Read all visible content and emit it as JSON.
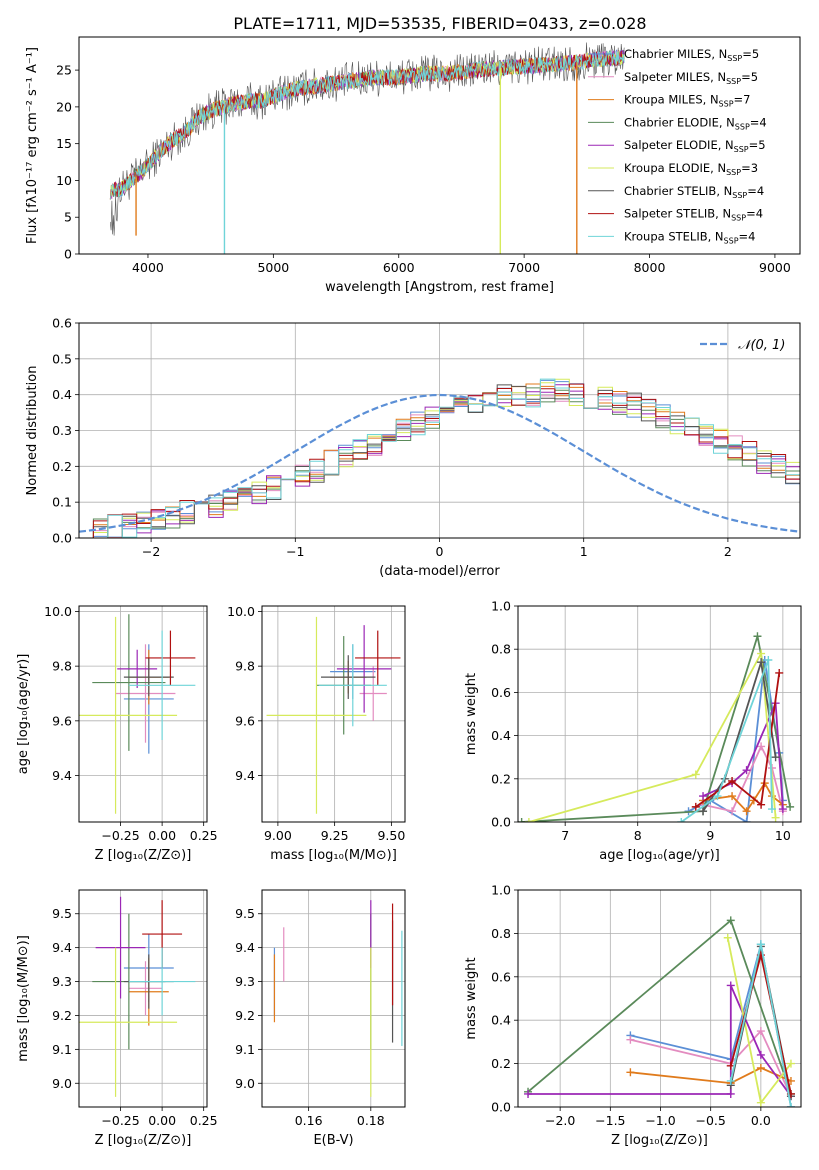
{
  "title": "PLATE=1711, MJD=53535, FIBERID=0433, z=0.028",
  "colors": {
    "chabrier_miles": "#5b8fd6",
    "salpeter_miles": "#e38cc0",
    "kroupa_miles": "#e07b1c",
    "chabrier_elodie": "#5a8a5a",
    "salpeter_elodie": "#9b27b5",
    "kroupa_elodie": "#d6ea5c",
    "chabrier_stelib": "#555555",
    "salpeter_stelib": "#b01010",
    "kroupa_stelib": "#6fd4d8",
    "normal_curve": "#5b8fd6",
    "grid": "#b0b0b0"
  },
  "chart_data": [
    {
      "id": "spectrum",
      "type": "line",
      "xlabel": "wavelength [Angstrom, rest frame]",
      "ylabel": "Flux [fλ10⁻¹⁷ erg cm⁻² s⁻¹ A⁻¹]",
      "xlim": [
        3450,
        9200
      ],
      "ylim": [
        0,
        29.5
      ],
      "xticks": [
        4000,
        5000,
        6000,
        7000,
        8000,
        9000
      ],
      "yticks": [
        0,
        5,
        10,
        15,
        20,
        25
      ],
      "grid": false,
      "legend_position": "top-right",
      "legend": [
        {
          "text": "Chabrier MILES, N",
          "sub": "SSP",
          "tail": "=5",
          "color": "chabrier_miles"
        },
        {
          "text": "Salpeter MILES, N",
          "sub": "SSP",
          "tail": "=5",
          "color": "salpeter_miles"
        },
        {
          "text": "Kroupa MILES, N",
          "sub": "SSP",
          "tail": "=7",
          "color": "kroupa_miles"
        },
        {
          "text": "Chabrier ELODIE, N",
          "sub": "SSP",
          "tail": "=4",
          "color": "chabrier_elodie"
        },
        {
          "text": "Salpeter ELODIE, N",
          "sub": "SSP",
          "tail": "=5",
          "color": "salpeter_elodie"
        },
        {
          "text": "Kroupa ELODIE, N",
          "sub": "SSP",
          "tail": "=3",
          "color": "kroupa_elodie"
        },
        {
          "text": "Chabrier STELIB, N",
          "sub": "SSP",
          "tail": "=4",
          "color": "chabrier_stelib"
        },
        {
          "text": "Salpeter STELIB, N",
          "sub": "SSP",
          "tail": "=4",
          "color": "salpeter_stelib"
        },
        {
          "text": "Kroupa STELIB, N",
          "sub": "SSP",
          "tail": "=4",
          "color": "kroupa_stelib"
        }
      ],
      "continuum": [
        [
          3700,
          8.5
        ],
        [
          3800,
          9
        ],
        [
          3900,
          10.5
        ],
        [
          4000,
          12
        ],
        [
          4100,
          14
        ],
        [
          4200,
          15.5
        ],
        [
          4300,
          16.5
        ],
        [
          4400,
          18.5
        ],
        [
          4500,
          19.5
        ],
        [
          4600,
          20
        ],
        [
          4700,
          20.5
        ],
        [
          4800,
          20.8
        ],
        [
          4900,
          20.8
        ],
        [
          5000,
          21.5
        ],
        [
          5200,
          22.5
        ],
        [
          5400,
          23
        ],
        [
          5600,
          23.5
        ],
        [
          5800,
          24
        ],
        [
          6000,
          24
        ],
        [
          6200,
          24.5
        ],
        [
          6400,
          24.5
        ],
        [
          6600,
          25
        ],
        [
          6800,
          25.3
        ],
        [
          7000,
          25.5
        ],
        [
          7200,
          25.8
        ],
        [
          7400,
          26
        ],
        [
          7600,
          26.5
        ],
        [
          7800,
          26.7
        ]
      ],
      "drops": [
        {
          "x": 4610,
          "to": 0,
          "series": "kroupa_stelib"
        },
        {
          "x": 6810,
          "to": 0,
          "series": "kroupa_elodie"
        },
        {
          "x": 7420,
          "to": 0,
          "series": "kroupa_miles"
        },
        {
          "x": 3905,
          "to": 2.5,
          "series": "kroupa_miles"
        }
      ]
    },
    {
      "id": "residuals",
      "type": "line",
      "xlabel": "(data-model)/error",
      "ylabel": "Normed distribution",
      "xlim": [
        -2.5,
        2.5
      ],
      "ylim": [
        0,
        0.6
      ],
      "xticks": [
        -2,
        -1,
        0,
        1,
        2
      ],
      "yticks": [
        0.0,
        0.1,
        0.2,
        0.3,
        0.4,
        0.5,
        0.6
      ],
      "grid": true,
      "legend_position": "top-right",
      "legend_label": "𝒩(0, 1)",
      "hist_bin_width": 0.1,
      "hist_x_start": -2.5,
      "hist_base": [
        0.02,
        0.025,
        0.03,
        0.035,
        0.04,
        0.05,
        0.06,
        0.07,
        0.08,
        0.09,
        0.1,
        0.11,
        0.125,
        0.14,
        0.16,
        0.17,
        0.19,
        0.21,
        0.23,
        0.24,
        0.26,
        0.28,
        0.3,
        0.32,
        0.34,
        0.355,
        0.37,
        0.38,
        0.39,
        0.395,
        0.4,
        0.4,
        0.41,
        0.41,
        0.4,
        0.395,
        0.39,
        0.38,
        0.37,
        0.36,
        0.34,
        0.325,
        0.31,
        0.29,
        0.27,
        0.25,
        0.235,
        0.215,
        0.2,
        0.18
      ],
      "normal_mean": 0,
      "normal_sigma": 1
    },
    {
      "id": "age_vs_Z",
      "type": "scatter",
      "xlabel": "Z [log₁₀(Z/Z⊙)]",
      "ylabel": "age  [log₁₀(age/yr)]",
      "xlim": [
        -0.5,
        0.27
      ],
      "ylim": [
        9.23,
        10.02
      ],
      "xticks": [
        -0.25,
        0.0,
        0.25
      ],
      "xtick_labels": [
        "−0.25",
        "0.00",
        "0.25"
      ],
      "yticks": [
        9.4,
        9.6,
        9.8,
        10.0
      ],
      "grid": true,
      "points": [
        {
          "series": "chabrier_miles",
          "x": -0.08,
          "xerr": 0.15,
          "y": 9.68,
          "yerr": 0.2
        },
        {
          "series": "salpeter_miles",
          "x": -0.1,
          "xerr": 0.18,
          "y": 9.7,
          "yerr": 0.18
        },
        {
          "series": "kroupa_miles",
          "x": -0.08,
          "xerr": 0.12,
          "y": 9.76,
          "yerr": 0.1
        },
        {
          "series": "chabrier_elodie",
          "x": -0.2,
          "xerr": 0.22,
          "y": 9.74,
          "yerr": 0.25
        },
        {
          "series": "salpeter_elodie",
          "x": -0.15,
          "xerr": 0.12,
          "y": 9.79,
          "yerr": 0.07
        },
        {
          "series": "kroupa_elodie",
          "x": -0.28,
          "xerr": 0.37,
          "y": 9.62,
          "yerr": 0.36
        },
        {
          "series": "chabrier_stelib",
          "x": -0.08,
          "xerr": 0.15,
          "y": 9.76,
          "yerr": 0.07
        },
        {
          "series": "salpeter_stelib",
          "x": 0.05,
          "xerr": 0.15,
          "y": 9.83,
          "yerr": 0.1
        },
        {
          "series": "kroupa_stelib",
          "x": 0.0,
          "xerr": 0.2,
          "y": 9.73,
          "yerr": 0.2
        }
      ]
    },
    {
      "id": "age_vs_mass",
      "type": "scatter",
      "xlabel": "mass [log₁₀(M/M⊙)]",
      "ylabel": "",
      "xlim": [
        8.93,
        9.56
      ],
      "ylim": [
        9.23,
        10.02
      ],
      "xticks": [
        9.0,
        9.25,
        9.5
      ],
      "xtick_labels": [
        "9.00",
        "9.25",
        "9.50"
      ],
      "yticks": [
        9.4,
        9.6,
        9.8,
        10.0
      ],
      "grid": true,
      "points": [
        {
          "series": "chabrier_miles",
          "x": 9.33,
          "xerr": 0.1,
          "y": 9.78,
          "yerr": 0.1
        },
        {
          "series": "salpeter_miles",
          "x": 9.42,
          "xerr": 0.06,
          "y": 9.7,
          "yerr": 0.1
        },
        {
          "series": "kroupa_miles",
          "x": 9.31,
          "xerr": 0.08,
          "y": 9.76,
          "yerr": 0.06
        },
        {
          "series": "chabrier_elodie",
          "x": 9.29,
          "xerr": 0.12,
          "y": 9.73,
          "yerr": 0.18
        },
        {
          "series": "salpeter_elodie",
          "x": 9.38,
          "xerr": 0.12,
          "y": 9.79,
          "yerr": 0.16
        },
        {
          "series": "kroupa_elodie",
          "x": 9.17,
          "xerr": 0.22,
          "y": 9.62,
          "yerr": 0.36
        },
        {
          "series": "chabrier_stelib",
          "x": 9.31,
          "xerr": 0.12,
          "y": 9.76,
          "yerr": 0.08
        },
        {
          "series": "salpeter_stelib",
          "x": 9.44,
          "xerr": 0.1,
          "y": 9.83,
          "yerr": 0.1
        },
        {
          "series": "kroupa_stelib",
          "x": 9.33,
          "xerr": 0.15,
          "y": 9.73,
          "yerr": 0.15
        }
      ]
    },
    {
      "id": "weight_vs_age",
      "type": "line",
      "xlabel": "age  [log₁₀(age/yr)]",
      "ylabel": "mass weight",
      "xlim": [
        6.35,
        10.25
      ],
      "ylim": [
        0,
        1
      ],
      "xticks": [
        7,
        8,
        9,
        10
      ],
      "yticks": [
        0.0,
        0.2,
        0.4,
        0.6,
        0.8,
        1.0
      ],
      "grid": true,
      "series": [
        {
          "series": "chabrier_miles",
          "x": [
            8.7,
            9.0,
            9.5,
            9.75,
            9.95,
            10.0
          ],
          "y": [
            0.05,
            0.1,
            0.0,
            0.75,
            0.32,
            0.1
          ]
        },
        {
          "series": "salpeter_miles",
          "x": [
            8.9,
            9.3,
            9.7,
            9.85,
            10.0
          ],
          "y": [
            0.08,
            0.05,
            0.35,
            0.25,
            0.05
          ]
        },
        {
          "series": "kroupa_miles",
          "x": [
            8.9,
            9.3,
            9.5,
            9.6,
            9.75,
            9.85,
            10.0
          ],
          "y": [
            0.1,
            0.12,
            0.05,
            0.1,
            0.18,
            0.12,
            0.08
          ]
        },
        {
          "series": "chabrier_elodie",
          "x": [
            6.4,
            8.9,
            9.65,
            10.1
          ],
          "y": [
            0.0,
            0.05,
            0.86,
            0.07
          ]
        },
        {
          "series": "salpeter_elodie",
          "x": [
            8.9,
            9.3,
            9.5,
            9.9,
            10.0
          ],
          "y": [
            0.12,
            0.18,
            0.24,
            0.55,
            0.06
          ]
        },
        {
          "series": "kroupa_elodie",
          "x": [
            6.5,
            8.8,
            9.7,
            9.9
          ],
          "y": [
            0.0,
            0.22,
            0.78,
            0.02
          ]
        },
        {
          "series": "chabrier_stelib",
          "x": [
            8.9,
            9.2,
            9.7,
            9.9
          ],
          "y": [
            0.05,
            0.2,
            0.74,
            0.3
          ]
        },
        {
          "series": "salpeter_stelib",
          "x": [
            8.8,
            9.3,
            9.7,
            9.95
          ],
          "y": [
            0.07,
            0.19,
            0.08,
            0.69
          ]
        },
        {
          "series": "kroupa_stelib",
          "x": [
            8.6,
            9.1,
            9.8,
            9.85
          ],
          "y": [
            0.0,
            0.12,
            0.75,
            0.06
          ]
        }
      ]
    },
    {
      "id": "mass_vs_Z",
      "type": "scatter",
      "xlabel": "Z [log₁₀(Z/Z⊙)]",
      "ylabel": "mass [log₁₀(M/M⊙)]",
      "xlim": [
        -0.5,
        0.27
      ],
      "ylim": [
        8.93,
        9.57
      ],
      "xticks": [
        -0.25,
        0.0,
        0.25
      ],
      "xtick_labels": [
        "−0.25",
        "0.00",
        "0.25"
      ],
      "yticks": [
        9.0,
        9.1,
        9.2,
        9.3,
        9.4,
        9.5
      ],
      "grid": true,
      "points": [
        {
          "series": "chabrier_miles",
          "x": -0.08,
          "xerr": 0.15,
          "y": 9.34,
          "yerr": 0.1
        },
        {
          "series": "salpeter_miles",
          "x": -0.1,
          "xerr": 0.1,
          "y": 9.28,
          "yerr": 0.08
        },
        {
          "series": "kroupa_miles",
          "x": -0.08,
          "xerr": 0.12,
          "y": 9.27,
          "yerr": 0.1
        },
        {
          "series": "chabrier_elodie",
          "x": -0.2,
          "xerr": 0.22,
          "y": 9.3,
          "yerr": 0.2
        },
        {
          "series": "salpeter_elodie",
          "x": -0.25,
          "xerr": 0.15,
          "y": 9.4,
          "yerr": 0.15
        },
        {
          "series": "kroupa_elodie",
          "x": -0.28,
          "xerr": 0.37,
          "y": 9.18,
          "yerr": 0.22
        },
        {
          "series": "chabrier_stelib",
          "x": -0.08,
          "xerr": 0.15,
          "y": 9.3,
          "yerr": 0.08
        },
        {
          "series": "salpeter_stelib",
          "x": 0.0,
          "xerr": 0.12,
          "y": 9.44,
          "yerr": 0.1
        },
        {
          "series": "kroupa_stelib",
          "x": 0.0,
          "xerr": 0.2,
          "y": 9.3,
          "yerr": 0.1
        }
      ]
    },
    {
      "id": "mass_vs_ebv",
      "type": "scatter",
      "xlabel": "E(B-V)",
      "ylabel": "",
      "xlim": [
        0.145,
        0.191
      ],
      "ylim": [
        8.93,
        9.57
      ],
      "xticks": [
        0.16,
        0.18
      ],
      "xtick_labels": [
        "0.16",
        "0.18"
      ],
      "yticks": [
        9.0,
        9.1,
        9.2,
        9.3,
        9.4,
        9.5
      ],
      "grid": true,
      "points": [
        {
          "series": "chabrier_miles",
          "x": 0.149,
          "xerr": 0,
          "y": 9.3,
          "yerr": 0.1
        },
        {
          "series": "salpeter_miles",
          "x": 0.152,
          "xerr": 0,
          "y": 9.38,
          "yerr": 0.08
        },
        {
          "series": "kroupa_miles",
          "x": 0.149,
          "xerr": 0,
          "y": 9.28,
          "yerr": 0.1
        },
        {
          "series": "chabrier_elodie",
          "x": 0.18,
          "xerr": 0,
          "y": 9.3,
          "yerr": 0.2
        },
        {
          "series": "salpeter_elodie",
          "x": 0.18,
          "xerr": 0,
          "y": 9.44,
          "yerr": 0.1
        },
        {
          "series": "kroupa_elodie",
          "x": 0.18,
          "xerr": 0,
          "y": 9.18,
          "yerr": 0.22
        },
        {
          "series": "chabrier_stelib",
          "x": 0.187,
          "xerr": 0,
          "y": 9.3,
          "yerr": 0.18
        },
        {
          "series": "salpeter_stelib",
          "x": 0.187,
          "xerr": 0,
          "y": 9.38,
          "yerr": 0.15
        },
        {
          "series": "kroupa_stelib",
          "x": 0.19,
          "xerr": 0,
          "y": 9.28,
          "yerr": 0.17
        }
      ]
    },
    {
      "id": "weight_vs_Z",
      "type": "line",
      "xlabel": "Z [log₁₀(Z/Z⊙)]",
      "ylabel": "mass weight",
      "xlim": [
        -2.42,
        0.4
      ],
      "ylim": [
        0,
        1
      ],
      "xticks": [
        -2.0,
        -1.5,
        -1.0,
        -0.5,
        0.0
      ],
      "xtick_labels": [
        "−2.0",
        "−1.5",
        "−1.0",
        "−0.5",
        "0.0"
      ],
      "yticks": [
        0.0,
        0.2,
        0.4,
        0.6,
        0.8,
        1.0
      ],
      "grid": true,
      "series": [
        {
          "series": "chabrier_miles",
          "x": [
            -1.3,
            -0.3,
            0.0,
            0.3
          ],
          "y": [
            0.33,
            0.22,
            0.75,
            0.0
          ]
        },
        {
          "series": "salpeter_miles",
          "x": [
            -1.3,
            -0.3,
            0.0,
            0.3
          ],
          "y": [
            0.31,
            0.2,
            0.35,
            0.05
          ]
        },
        {
          "series": "kroupa_miles",
          "x": [
            -1.3,
            -0.3,
            0.0,
            0.3
          ],
          "y": [
            0.16,
            0.11,
            0.18,
            0.12
          ]
        },
        {
          "series": "chabrier_elodie",
          "x": [
            -2.32,
            -0.3,
            0.3
          ],
          "y": [
            0.07,
            0.86,
            0.06
          ]
        },
        {
          "series": "salpeter_elodie",
          "x": [
            -2.32,
            -0.3,
            -0.3,
            0.0,
            0.3
          ],
          "y": [
            0.06,
            0.06,
            0.56,
            0.24,
            0.05
          ]
        },
        {
          "series": "kroupa_elodie",
          "x": [
            -0.33,
            0.0,
            0.3
          ],
          "y": [
            0.78,
            0.02,
            0.2
          ]
        },
        {
          "series": "chabrier_stelib",
          "x": [
            -0.3,
            0.0,
            0.3
          ],
          "y": [
            0.1,
            0.74,
            0.05
          ]
        },
        {
          "series": "salpeter_stelib",
          "x": [
            -0.3,
            0.0,
            0.3
          ],
          "y": [
            0.19,
            0.7,
            0.06
          ]
        },
        {
          "series": "kroupa_stelib",
          "x": [
            -0.3,
            0.0,
            0.3
          ],
          "y": [
            0.12,
            0.75,
            0.0
          ]
        }
      ]
    }
  ]
}
